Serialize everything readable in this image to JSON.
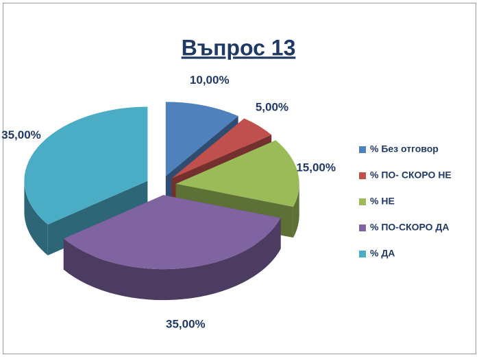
{
  "chart_data": {
    "type": "pie",
    "title": "Въпрос 13",
    "categories": [
      "% Без отговор",
      "% ПО- СКОРО НЕ",
      "% НЕ",
      "% ПО-СКОРО ДА",
      "% ДА"
    ],
    "values": [
      10,
      5,
      15,
      35,
      35
    ],
    "value_labels": [
      "10,00%",
      "5,00%",
      "15,00%",
      "35,00%",
      "35,00%"
    ],
    "colors": [
      "#4f81bd",
      "#c0504d",
      "#9bbb59",
      "#8064a2",
      "#4bacc6"
    ],
    "legend": "right"
  }
}
